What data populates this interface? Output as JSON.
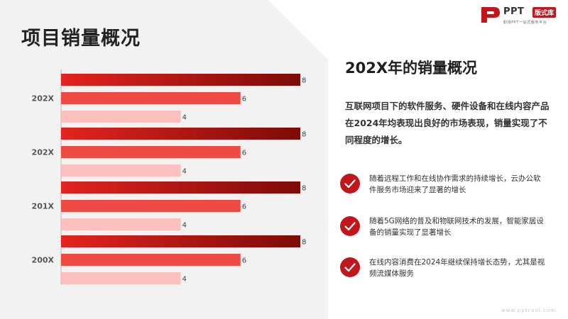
{
  "page": {
    "title": "项目销量概况",
    "footer_url": "www.pptcool.com"
  },
  "logo": {
    "name": "PPT",
    "badge": "版式库",
    "tagline": "职场PPT一站式服务平台"
  },
  "panel": {
    "title": "202X年的销量概况",
    "summary": "互联网项目下的软件服务、硬件设备和在线内容产品在2024年均表现出良好的市场表现，销量实现了不同程度的增长。",
    "points": [
      {
        "text": "随着远程工作和在线协作需求的持续增长，云办公软件服务市场迎来了显著的增长"
      },
      {
        "text": "随着5G网络的普及和物联网技术的发展，智能家居设备的销量实现了显著增长"
      },
      {
        "text": "在线内容消费在2024年继续保持增长态势，尤其是视频流媒体服务"
      }
    ]
  },
  "colors": {
    "dark_red_start": "#e3231f",
    "dark_red_end": "#7d0b07",
    "mid_red": "#f04a45",
    "light_pink": "#fbc0bd",
    "accent": "#c0161c"
  },
  "chart_data": {
    "type": "bar",
    "orientation": "horizontal",
    "categories": [
      "202X",
      "202X",
      "201X",
      "200X"
    ],
    "series": [
      {
        "values": [
          8,
          8,
          8,
          8
        ]
      },
      {
        "values": [
          6,
          6,
          6,
          6
        ]
      },
      {
        "values": [
          4,
          4,
          4,
          4
        ]
      }
    ],
    "xlim": [
      0,
      8
    ],
    "grid": false,
    "legend": "none"
  }
}
